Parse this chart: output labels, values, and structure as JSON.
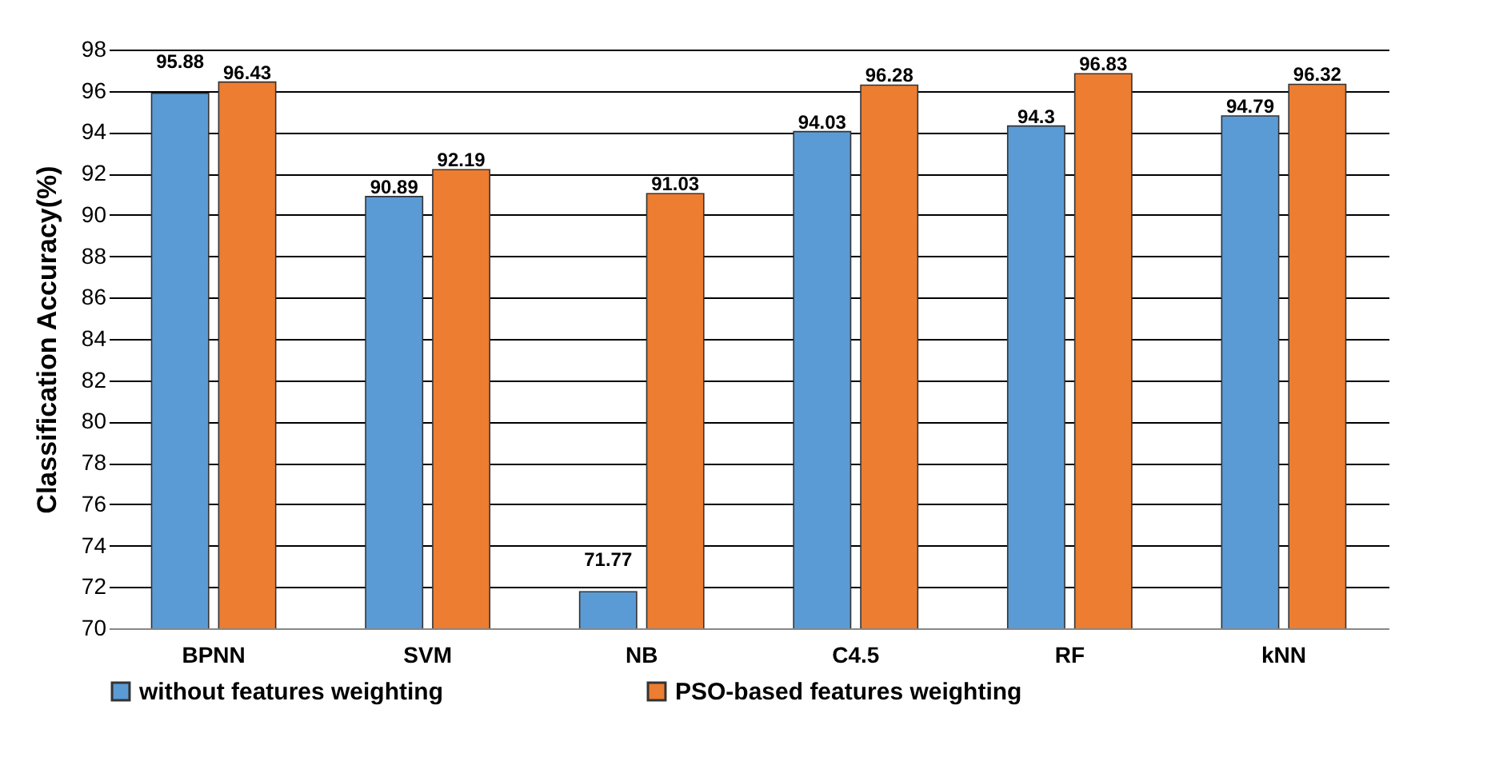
{
  "chart_data": {
    "type": "bar",
    "ylabel": "Classification Accuracy(%)",
    "categories": [
      "BPNN",
      "SVM",
      "NB",
      "C4.5",
      "RF",
      "kNN"
    ],
    "series": [
      {
        "name": "without features  weighting",
        "color": "#5b9bd5",
        "values": [
          95.88,
          90.89,
          71.77,
          94.03,
          94.3,
          94.79
        ]
      },
      {
        "name": "PSO-based features weighting",
        "color": "#ed7d31",
        "values": [
          96.43,
          92.19,
          91.03,
          96.28,
          96.83,
          96.32
        ]
      }
    ],
    "ylim": [
      70,
      98
    ],
    "yticks": [
      70,
      72,
      74,
      76,
      78,
      80,
      82,
      84,
      86,
      88,
      90,
      92,
      94,
      96,
      98
    ],
    "grid": "y",
    "legend": "bottom",
    "data_labels": true
  }
}
